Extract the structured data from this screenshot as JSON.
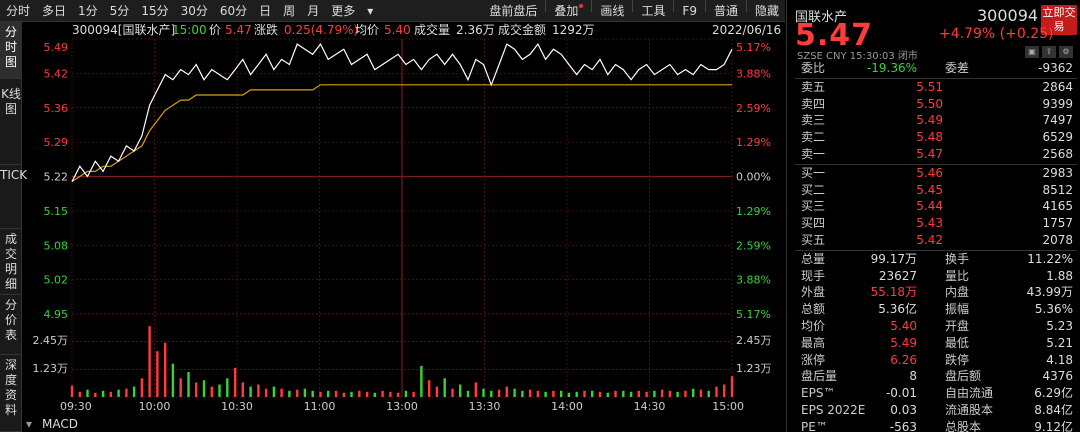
{
  "toolbar": {
    "items": [
      "分时",
      "多日",
      "1分",
      "5分",
      "15分",
      "30分",
      "60分",
      "日",
      "周",
      "月",
      "更多"
    ],
    "right": [
      "盘前盘后",
      "叠加",
      "画线",
      "工具",
      "F9",
      "普通",
      "隐藏"
    ]
  },
  "sidebar": {
    "tabs": [
      "分时图",
      "K线图",
      "TICK",
      "成交明细",
      "分价表",
      "深度资料"
    ]
  },
  "info_bar": {
    "code_name": "300094[国联水产]",
    "time": "15:00",
    "price_label": "价",
    "price": "5.47",
    "change_label": "涨跌",
    "change": "0.25(4.79%)",
    "avg_label": "均价",
    "avg": "5.40",
    "vol_label": "成交量",
    "vol": "2.36万",
    "amt_label": "成交金额",
    "amt": "1292万",
    "date": "2022/06/16"
  },
  "colors": {
    "up": "#ff3b3b",
    "down": "#3bd13b",
    "price_line": "#ffffff",
    "avg_line": "#d4a017",
    "grid": "#7a1c1c",
    "bg": "#000000"
  },
  "chart_data": {
    "type": "line",
    "price_axis": [
      "5.49",
      "5.42",
      "5.36",
      "5.29",
      "5.22",
      "5.15",
      "5.08",
      "5.02",
      "4.95"
    ],
    "pct_axis": [
      "5.17%",
      "3.88%",
      "2.59%",
      "1.29%",
      "0.00%",
      "1.29%",
      "2.59%",
      "3.88%",
      "5.17%"
    ],
    "vol_axis": [
      "2.45万",
      "1.23万"
    ],
    "vol_axis_top": "4.95",
    "x_ticks": [
      "09:30",
      "10:00",
      "10:30",
      "11:00",
      "13:00",
      "13:30",
      "14:00",
      "14:30",
      "15:00"
    ],
    "ylim": [
      4.95,
      5.49
    ],
    "prev_close": 5.22,
    "price": [
      5.21,
      5.24,
      5.22,
      5.25,
      5.23,
      5.26,
      5.25,
      5.28,
      5.27,
      5.3,
      5.36,
      5.39,
      5.42,
      5.41,
      5.43,
      5.42,
      5.44,
      5.41,
      5.43,
      5.42,
      5.41,
      5.43,
      5.45,
      5.42,
      5.44,
      5.46,
      5.43,
      5.45,
      5.44,
      5.48,
      5.47,
      5.46,
      5.48,
      5.45,
      5.46,
      5.47,
      5.44,
      5.45,
      5.46,
      5.43,
      5.44,
      5.45,
      5.46,
      5.44,
      5.45,
      5.43,
      5.45,
      5.46,
      5.44,
      5.46,
      5.44,
      5.41,
      5.45,
      5.44,
      5.4,
      5.44,
      5.48,
      5.47,
      5.45,
      5.46,
      5.48,
      5.45,
      5.47,
      5.46,
      5.44,
      5.42,
      5.44,
      5.43,
      5.45,
      5.42,
      5.44,
      5.43,
      5.41,
      5.43,
      5.44,
      5.42,
      5.43,
      5.44,
      5.42,
      5.43,
      5.42,
      5.44,
      5.43,
      5.43,
      5.44,
      5.47
    ],
    "avg": [
      5.21,
      5.22,
      5.23,
      5.23,
      5.24,
      5.24,
      5.25,
      5.26,
      5.27,
      5.28,
      5.31,
      5.33,
      5.35,
      5.36,
      5.37,
      5.37,
      5.38,
      5.38,
      5.38,
      5.38,
      5.38,
      5.38,
      5.38,
      5.39,
      5.39,
      5.39,
      5.39,
      5.39,
      5.39,
      5.39,
      5.39,
      5.39,
      5.4,
      5.4,
      5.4,
      5.4,
      5.4,
      5.4,
      5.4,
      5.4,
      5.4,
      5.4,
      5.4,
      5.4,
      5.4,
      5.4,
      5.4,
      5.4,
      5.4,
      5.4,
      5.4,
      5.4,
      5.4,
      5.4,
      5.4,
      5.4,
      5.4,
      5.4,
      5.4,
      5.4,
      5.4,
      5.4,
      5.4,
      5.4,
      5.4,
      5.4,
      5.4,
      5.4,
      5.4,
      5.4,
      5.4,
      5.4,
      5.4,
      5.4,
      5.4,
      5.4,
      5.4,
      5.4,
      5.4,
      5.4,
      5.4,
      5.4,
      5.4,
      5.4,
      5.4,
      5.4
    ],
    "volume": [
      0.55,
      0.25,
      0.35,
      0.2,
      0.3,
      0.25,
      0.35,
      0.4,
      0.5,
      0.9,
      3.4,
      2.2,
      2.6,
      1.6,
      0.9,
      1.2,
      0.7,
      0.8,
      0.5,
      0.6,
      0.9,
      1.4,
      0.7,
      0.5,
      0.6,
      0.4,
      0.5,
      0.4,
      0.3,
      0.35,
      0.4,
      0.3,
      0.25,
      0.3,
      0.3,
      0.2,
      0.25,
      0.3,
      0.25,
      0.2,
      0.3,
      0.25,
      0.2,
      0.3,
      0.25,
      1.5,
      0.8,
      0.5,
      0.9,
      0.4,
      0.6,
      0.3,
      0.7,
      0.4,
      0.3,
      0.35,
      0.5,
      0.4,
      0.3,
      0.35,
      0.3,
      0.25,
      0.3,
      0.3,
      0.2,
      0.25,
      0.3,
      0.3,
      0.25,
      0.2,
      0.3,
      0.3,
      0.25,
      0.3,
      0.25,
      0.3,
      0.35,
      0.3,
      0.25,
      0.3,
      0.4,
      0.35,
      0.3,
      0.5,
      0.6,
      1.0
    ],
    "vol_max": 3.6
  },
  "macd": {
    "label": "MACD"
  },
  "quote": {
    "name": "国联水产",
    "code": "300094",
    "buy_btn": "立即交易",
    "price": "5.47",
    "change": "+4.79% (+0.25)",
    "sub": "SZSE  CNY  15:30:03  闭市",
    "wb": {
      "l": "委比",
      "v": "-19.36%",
      "l2": "委差",
      "v2": "-9362"
    },
    "asks": [
      {
        "l": "卖五",
        "p": "5.51",
        "v": "2864"
      },
      {
        "l": "卖四",
        "p": "5.50",
        "v": "9399"
      },
      {
        "l": "卖三",
        "p": "5.49",
        "v": "7497"
      },
      {
        "l": "卖二",
        "p": "5.48",
        "v": "6529"
      },
      {
        "l": "卖一",
        "p": "5.47",
        "v": "2568"
      }
    ],
    "bids": [
      {
        "l": "买一",
        "p": "5.46",
        "v": "2983"
      },
      {
        "l": "买二",
        "p": "5.45",
        "v": "8512"
      },
      {
        "l": "买三",
        "p": "5.44",
        "v": "4165"
      },
      {
        "l": "买四",
        "p": "5.43",
        "v": "1757"
      },
      {
        "l": "买五",
        "p": "5.42",
        "v": "2078"
      }
    ],
    "stats": [
      {
        "l": "总量",
        "v": "99.17万",
        "l2": "换手",
        "v2": "11.22%"
      },
      {
        "l": "现手",
        "v": "23627",
        "l2": "量比",
        "v2": "1.88"
      },
      {
        "l": "外盘",
        "v": "55.18万",
        "l2": "内盘",
        "v2": "43.99万"
      },
      {
        "l": "总额",
        "v": "5.36亿",
        "l2": "振幅",
        "v2": "5.36%"
      },
      {
        "l": "均价",
        "v": "5.40",
        "l2": "开盘",
        "v2": "5.23"
      },
      {
        "l": "最高",
        "v": "5.49",
        "l2": "最低",
        "v2": "5.21"
      },
      {
        "l": "涨停",
        "v": "6.26",
        "l2": "跌停",
        "v2": "4.18"
      },
      {
        "l": "盘后量",
        "v": "8",
        "l2": "盘后额",
        "v2": "4376"
      },
      {
        "l": "EPS™",
        "v": "-0.01",
        "l2": "自由流通",
        "v2": "6.29亿"
      },
      {
        "l": "EPS 2022E",
        "v": "0.03",
        "l2": "流通股本",
        "v2": "8.84亿"
      },
      {
        "l": "PE™",
        "v": "-563",
        "l2": "总股本",
        "v2": "9.12亿"
      }
    ]
  }
}
